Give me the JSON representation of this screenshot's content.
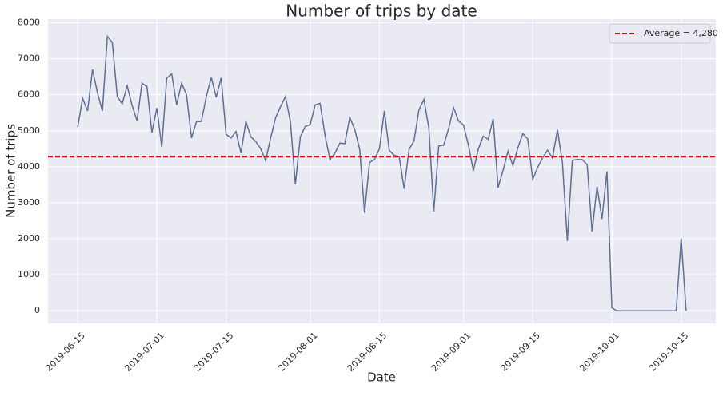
{
  "chart_data": {
    "type": "line",
    "title": "Number of trips by date",
    "x_label": "Date",
    "y_label": "Number of trips",
    "x": [
      "2019-06-15",
      "2019-06-16",
      "2019-06-17",
      "2019-06-18",
      "2019-06-19",
      "2019-06-20",
      "2019-06-21",
      "2019-06-22",
      "2019-06-23",
      "2019-06-24",
      "2019-06-25",
      "2019-06-26",
      "2019-06-27",
      "2019-06-28",
      "2019-06-29",
      "2019-06-30",
      "2019-07-01",
      "2019-07-02",
      "2019-07-03",
      "2019-07-04",
      "2019-07-05",
      "2019-07-06",
      "2019-07-07",
      "2019-07-08",
      "2019-07-09",
      "2019-07-10",
      "2019-07-11",
      "2019-07-12",
      "2019-07-13",
      "2019-07-14",
      "2019-07-15",
      "2019-07-16",
      "2019-07-17",
      "2019-07-18",
      "2019-07-19",
      "2019-07-20",
      "2019-07-21",
      "2019-07-22",
      "2019-07-23",
      "2019-07-24",
      "2019-07-25",
      "2019-07-26",
      "2019-07-27",
      "2019-07-28",
      "2019-07-29",
      "2019-07-30",
      "2019-07-31",
      "2019-08-01",
      "2019-08-02",
      "2019-08-03",
      "2019-08-04",
      "2019-08-05",
      "2019-08-06",
      "2019-08-07",
      "2019-08-08",
      "2019-08-09",
      "2019-08-10",
      "2019-08-11",
      "2019-08-12",
      "2019-08-13",
      "2019-08-14",
      "2019-08-15",
      "2019-08-16",
      "2019-08-17",
      "2019-08-18",
      "2019-08-19",
      "2019-08-20",
      "2019-08-21",
      "2019-08-22",
      "2019-08-23",
      "2019-08-24",
      "2019-08-25",
      "2019-08-26",
      "2019-08-27",
      "2019-08-28",
      "2019-08-29",
      "2019-08-30",
      "2019-08-31",
      "2019-09-01",
      "2019-09-02",
      "2019-09-03",
      "2019-09-04",
      "2019-09-05",
      "2019-09-06",
      "2019-09-07",
      "2019-09-08",
      "2019-09-09",
      "2019-09-10",
      "2019-09-11",
      "2019-09-12",
      "2019-09-13",
      "2019-09-14",
      "2019-09-15",
      "2019-09-16",
      "2019-09-17",
      "2019-09-18",
      "2019-09-19",
      "2019-09-20",
      "2019-09-21",
      "2019-09-22",
      "2019-09-23",
      "2019-09-24",
      "2019-09-25",
      "2019-09-26",
      "2019-09-27",
      "2019-09-28",
      "2019-09-29",
      "2019-09-30",
      "2019-10-01",
      "2019-10-02",
      "2019-10-03",
      "2019-10-04",
      "2019-10-05",
      "2019-10-06",
      "2019-10-07",
      "2019-10-08",
      "2019-10-09",
      "2019-10-10",
      "2019-10-11",
      "2019-10-12",
      "2019-10-13",
      "2019-10-14",
      "2019-10-15",
      "2019-10-16"
    ],
    "series": [
      {
        "color": "#5d6f94",
        "values": [
          5100,
          5900,
          5550,
          6700,
          6050,
          5550,
          7620,
          7450,
          5950,
          5750,
          6250,
          5700,
          5280,
          6320,
          6230,
          4950,
          5630,
          4550,
          6460,
          6580,
          5720,
          6320,
          6000,
          4800,
          5250,
          5260,
          5950,
          6480,
          5930,
          6470,
          4900,
          4800,
          4980,
          4380,
          5260,
          4830,
          4700,
          4500,
          4170,
          4800,
          5360,
          5670,
          5950,
          5250,
          3510,
          4830,
          5120,
          5170,
          5720,
          5760,
          4870,
          4200,
          4380,
          4660,
          4640,
          5370,
          5040,
          4490,
          2720,
          4120,
          4200,
          4500,
          5550,
          4450,
          4320,
          4280,
          3390,
          4480,
          4720,
          5580,
          5870,
          5080,
          2760,
          4580,
          4600,
          5060,
          5640,
          5270,
          5160,
          4600,
          3890,
          4490,
          4850,
          4760,
          5330,
          3420,
          3900,
          4430,
          4030,
          4530,
          4920,
          4770,
          3650,
          3980,
          4250,
          4460,
          4240,
          5030,
          4120,
          1940,
          4180,
          4200,
          4200,
          4060,
          2200,
          3450,
          2550,
          3870,
          80,
          0,
          0,
          0,
          0,
          0,
          0,
          0,
          0,
          0,
          0,
          0,
          0,
          0,
          2010,
          0
        ]
      }
    ],
    "reference_line": {
      "name": "Average = 4,280",
      "value": 4280,
      "color": "#e8000b"
    },
    "xlim": [
      "2019-06-09",
      "2019-10-22"
    ],
    "xticks": [
      "2019-06-15",
      "2019-07-01",
      "2019-07-15",
      "2019-08-01",
      "2019-08-15",
      "2019-09-01",
      "2019-09-15",
      "2019-10-01",
      "2019-10-15"
    ],
    "ylim": [
      -350,
      8100
    ],
    "yticks": [
      0,
      1000,
      2000,
      3000,
      4000,
      5000,
      6000,
      7000,
      8000
    ],
    "grid": true,
    "legend": "upper right"
  }
}
